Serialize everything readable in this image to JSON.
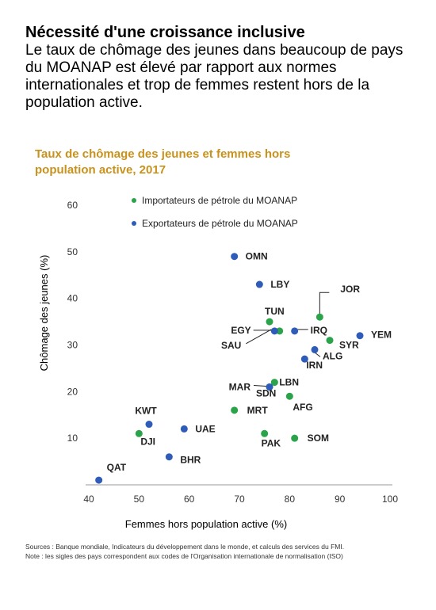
{
  "headline": {
    "title": "Nécessité d'une croissance inclusive",
    "text": "Le taux de chômage des jeunes dans beaucoup de pays du MOANAP est élevé par rapport aux normes internationales et trop de femmes restent hors de la population active."
  },
  "chart_data": {
    "type": "scatter",
    "title_line1": "Taux de chômage des jeunes et femmes hors",
    "title_line2": "population active, 2017",
    "xlabel": "Femmes hors population active (%)",
    "ylabel": "Chômage des jeunes (%)",
    "xlim": [
      40,
      100
    ],
    "ylim": [
      0,
      60
    ],
    "xticks": [
      40,
      50,
      60,
      70,
      80,
      90,
      100
    ],
    "yticks": [
      10,
      20,
      30,
      40,
      50,
      60
    ],
    "grid": false,
    "legend_position": "top-left",
    "series": [
      {
        "name": "Importateurs de pétrole du MOANAP",
        "color": "#2aa34a",
        "points": [
          {
            "label": "JOR",
            "x": 86,
            "y": 36
          },
          {
            "label": "TUN",
            "x": 76,
            "y": 35
          },
          {
            "label": "EGY",
            "x": 78,
            "y": 33
          },
          {
            "label": "SYR",
            "x": 88,
            "y": 31
          },
          {
            "label": "LBN",
            "x": 77,
            "y": 22
          },
          {
            "label": "MAR",
            "x": 76,
            "y": 21
          },
          {
            "label": "AFG",
            "x": 80,
            "y": 19
          },
          {
            "label": "MRT",
            "x": 69,
            "y": 16
          },
          {
            "label": "DJI",
            "x": 50,
            "y": 11
          },
          {
            "label": "PAK",
            "x": 75,
            "y": 11
          },
          {
            "label": "SOM",
            "x": 81,
            "y": 10
          }
        ]
      },
      {
        "name": "Exportateurs de pétrole du MOANAP",
        "color": "#2e5cb8",
        "points": [
          {
            "label": "OMN",
            "x": 69,
            "y": 49
          },
          {
            "label": "LBY",
            "x": 74,
            "y": 43
          },
          {
            "label": "IRQ",
            "x": 81,
            "y": 33
          },
          {
            "label": "YEM",
            "x": 94,
            "y": 32
          },
          {
            "label": "ALG",
            "x": 85,
            "y": 29
          },
          {
            "label": "IRN",
            "x": 83,
            "y": 27
          },
          {
            "label": "SAU",
            "x": 77,
            "y": 33
          },
          {
            "label": "SDN",
            "x": 76,
            "y": 21
          },
          {
            "label": "KWT",
            "x": 52,
            "y": 13
          },
          {
            "label": "UAE",
            "x": 59,
            "y": 12
          },
          {
            "label": "BHR",
            "x": 56,
            "y": 6
          },
          {
            "label": "QAT",
            "x": 42,
            "y": 1
          }
        ]
      }
    ]
  },
  "footnotes": {
    "sources": "Sources : Banque mondiale, Indicateurs du développement dans le monde, et calculs des services du FMI.",
    "note": "Note : les sigles des pays correspondent aux codes de l'Organisation internationale de normalisation (ISO)"
  }
}
